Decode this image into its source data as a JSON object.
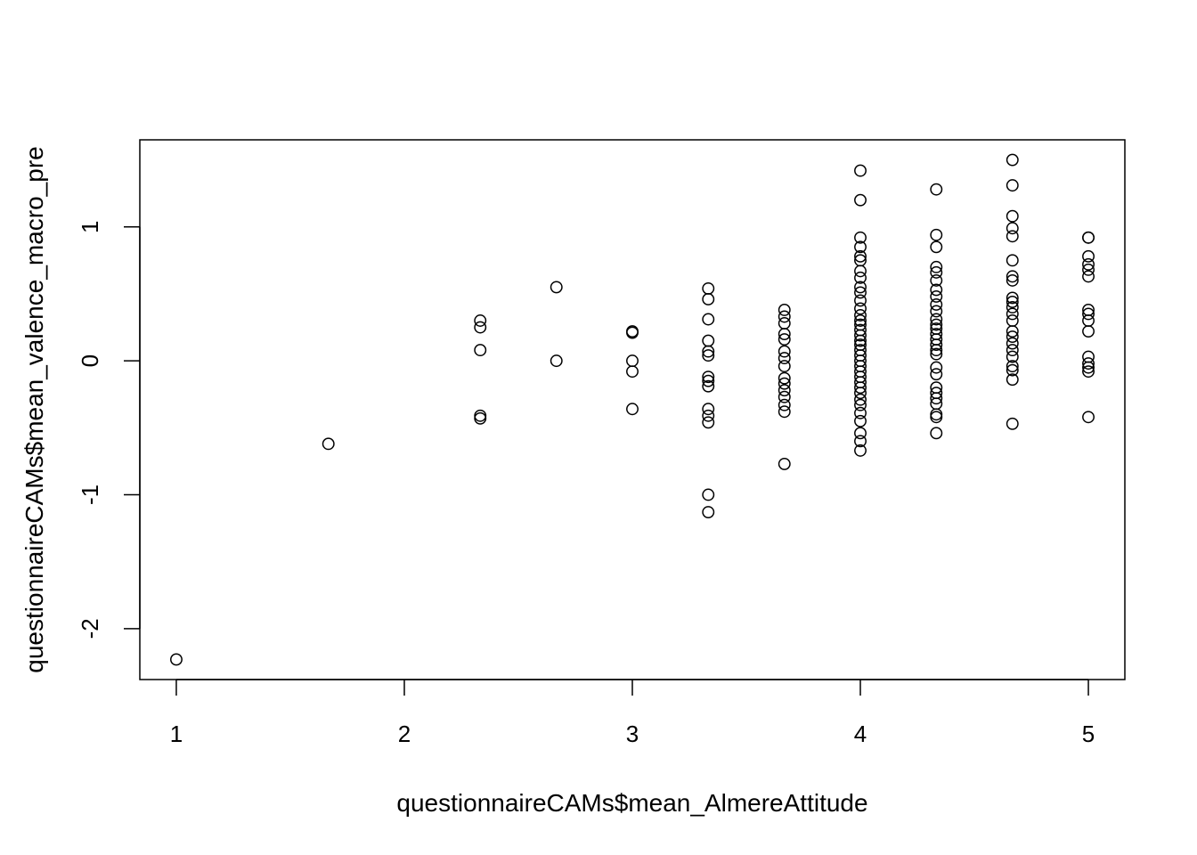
{
  "chart_data": {
    "type": "scatter",
    "title": "",
    "xlabel": "questionnaireCAMs$mean_AlmereAttitude",
    "ylabel": "questionnaireCAMs$mean_valence_macro_pre",
    "xlim": [
      0.84,
      5.16
    ],
    "ylim": [
      -2.38,
      1.65
    ],
    "xticks": [
      1,
      2,
      3,
      4,
      5
    ],
    "yticks": [
      -2,
      -1,
      0,
      1
    ],
    "grid": false,
    "legend": "none",
    "marker": "open-circle",
    "colors": {
      "marker": "#000000",
      "axis": "#000000",
      "background": "#ffffff"
    },
    "points": [
      [
        1,
        -2.23
      ],
      [
        1.667,
        -0.62
      ],
      [
        2.333,
        0.3
      ],
      [
        2.333,
        0.25
      ],
      [
        2.333,
        0.08
      ],
      [
        2.333,
        -0.41
      ],
      [
        2.333,
        -0.43
      ],
      [
        2.667,
        0.55
      ],
      [
        2.667,
        0.0
      ],
      [
        3,
        0.22
      ],
      [
        3,
        0.21
      ],
      [
        3,
        0.0
      ],
      [
        3,
        -0.08
      ],
      [
        3,
        -0.36
      ],
      [
        3.333,
        0.54
      ],
      [
        3.333,
        0.46
      ],
      [
        3.333,
        0.31
      ],
      [
        3.333,
        0.15
      ],
      [
        3.333,
        0.07
      ],
      [
        3.333,
        0.04
      ],
      [
        3.333,
        -0.12
      ],
      [
        3.333,
        -0.15
      ],
      [
        3.333,
        -0.19
      ],
      [
        3.333,
        -0.36
      ],
      [
        3.333,
        -0.41
      ],
      [
        3.333,
        -0.46
      ],
      [
        3.333,
        -1.0
      ],
      [
        3.333,
        -1.13
      ],
      [
        3.667,
        0.38
      ],
      [
        3.667,
        0.33
      ],
      [
        3.667,
        0.28
      ],
      [
        3.667,
        0.2
      ],
      [
        3.667,
        0.16
      ],
      [
        3.667,
        0.07
      ],
      [
        3.667,
        0.02
      ],
      [
        3.667,
        -0.04
      ],
      [
        3.667,
        -0.13
      ],
      [
        3.667,
        -0.17
      ],
      [
        3.667,
        -0.22
      ],
      [
        3.667,
        -0.27
      ],
      [
        3.667,
        -0.33
      ],
      [
        3.667,
        -0.38
      ],
      [
        3.667,
        -0.77
      ],
      [
        4,
        1.42
      ],
      [
        4,
        1.2
      ],
      [
        4,
        0.92
      ],
      [
        4,
        0.85
      ],
      [
        4,
        0.78
      ],
      [
        4,
        0.75
      ],
      [
        4,
        0.67
      ],
      [
        4,
        0.62
      ],
      [
        4,
        0.55
      ],
      [
        4,
        0.51
      ],
      [
        4,
        0.45
      ],
      [
        4,
        0.39
      ],
      [
        4,
        0.34
      ],
      [
        4,
        0.3
      ],
      [
        4,
        0.27
      ],
      [
        4,
        0.23
      ],
      [
        4,
        0.19
      ],
      [
        4,
        0.15
      ],
      [
        4,
        0.12
      ],
      [
        4,
        0.08
      ],
      [
        4,
        0.04
      ],
      [
        4,
        0.0
      ],
      [
        4,
        -0.04
      ],
      [
        4,
        -0.08
      ],
      [
        4,
        -0.12
      ],
      [
        4,
        -0.16
      ],
      [
        4,
        -0.2
      ],
      [
        4,
        -0.24
      ],
      [
        4,
        -0.29
      ],
      [
        4,
        -0.33
      ],
      [
        4,
        -0.39
      ],
      [
        4,
        -0.45
      ],
      [
        4,
        -0.54
      ],
      [
        4,
        -0.6
      ],
      [
        4,
        -0.67
      ],
      [
        4.333,
        1.28
      ],
      [
        4.333,
        0.94
      ],
      [
        4.333,
        0.85
      ],
      [
        4.333,
        0.7
      ],
      [
        4.333,
        0.66
      ],
      [
        4.333,
        0.6
      ],
      [
        4.333,
        0.53
      ],
      [
        4.333,
        0.48
      ],
      [
        4.333,
        0.42
      ],
      [
        4.333,
        0.37
      ],
      [
        4.333,
        0.31
      ],
      [
        4.333,
        0.27
      ],
      [
        4.333,
        0.24
      ],
      [
        4.333,
        0.2
      ],
      [
        4.333,
        0.16
      ],
      [
        4.333,
        0.12
      ],
      [
        4.333,
        0.08
      ],
      [
        4.333,
        0.05
      ],
      [
        4.333,
        -0.05
      ],
      [
        4.333,
        -0.1
      ],
      [
        4.333,
        -0.2
      ],
      [
        4.333,
        -0.24
      ],
      [
        4.333,
        -0.28
      ],
      [
        4.333,
        -0.32
      ],
      [
        4.333,
        -0.4
      ],
      [
        4.333,
        -0.42
      ],
      [
        4.333,
        -0.54
      ],
      [
        4.667,
        1.5
      ],
      [
        4.667,
        1.31
      ],
      [
        4.667,
        1.08
      ],
      [
        4.667,
        0.99
      ],
      [
        4.667,
        0.93
      ],
      [
        4.667,
        0.75
      ],
      [
        4.667,
        0.63
      ],
      [
        4.667,
        0.6
      ],
      [
        4.667,
        0.47
      ],
      [
        4.667,
        0.44
      ],
      [
        4.667,
        0.4
      ],
      [
        4.667,
        0.35
      ],
      [
        4.667,
        0.3
      ],
      [
        4.667,
        0.22
      ],
      [
        4.667,
        0.18
      ],
      [
        4.667,
        0.13
      ],
      [
        4.667,
        0.08
      ],
      [
        4.667,
        0.03
      ],
      [
        4.667,
        -0.04
      ],
      [
        4.667,
        -0.07
      ],
      [
        4.667,
        -0.14
      ],
      [
        4.667,
        -0.47
      ],
      [
        5,
        0.92
      ],
      [
        5,
        0.92
      ],
      [
        5,
        0.78
      ],
      [
        5,
        0.72
      ],
      [
        5,
        0.68
      ],
      [
        5,
        0.63
      ],
      [
        5,
        0.38
      ],
      [
        5,
        0.35
      ],
      [
        5,
        0.3
      ],
      [
        5,
        0.22
      ],
      [
        5,
        0.03
      ],
      [
        5,
        -0.02
      ],
      [
        5,
        -0.05
      ],
      [
        5,
        -0.08
      ],
      [
        5,
        -0.42
      ]
    ]
  }
}
